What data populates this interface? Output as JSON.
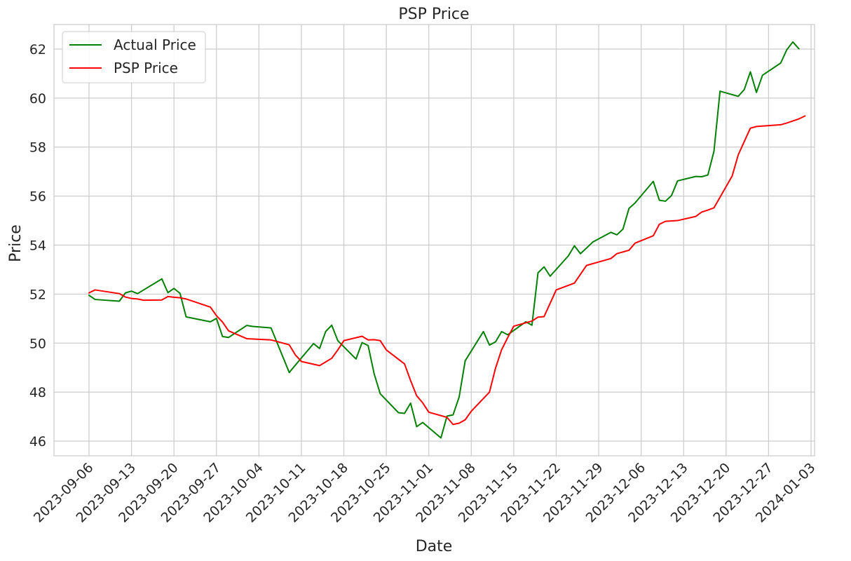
{
  "chart_data": {
    "type": "line",
    "title": "PSP Price",
    "xlabel": "Date",
    "ylabel": "Price",
    "xlim": [
      "2023-09-06",
      "2024-01-03"
    ],
    "ylim": [
      45.4,
      63.0
    ],
    "x_ticks": [
      "2023-09-06",
      "2023-09-13",
      "2023-09-20",
      "2023-09-27",
      "2023-10-04",
      "2023-10-11",
      "2023-10-18",
      "2023-10-25",
      "2023-11-01",
      "2023-11-08",
      "2023-11-15",
      "2023-11-22",
      "2023-11-29",
      "2023-12-06",
      "2023-12-13",
      "2023-12-20",
      "2023-12-27",
      "2024-01-03"
    ],
    "y_ticks": [
      46,
      48,
      50,
      52,
      54,
      56,
      58,
      60,
      62
    ],
    "grid": true,
    "legend_position": "top-left",
    "series": [
      {
        "name": "Actual Price",
        "color": "#008000",
        "points": [
          [
            "2023-09-06",
            51.95
          ],
          [
            "2023-09-07",
            51.78
          ],
          [
            "2023-09-11",
            51.71
          ],
          [
            "2023-09-12",
            52.05
          ],
          [
            "2023-09-13",
            52.12
          ],
          [
            "2023-09-14",
            52.02
          ],
          [
            "2023-09-18",
            52.62
          ],
          [
            "2023-09-19",
            52.06
          ],
          [
            "2023-09-20",
            52.23
          ],
          [
            "2023-09-21",
            52.03
          ],
          [
            "2023-09-22",
            51.07
          ],
          [
            "2023-09-26",
            50.87
          ],
          [
            "2023-09-27",
            51.01
          ],
          [
            "2023-09-28",
            50.27
          ],
          [
            "2023-09-29",
            50.23
          ],
          [
            "2023-10-02",
            50.72
          ],
          [
            "2023-10-03",
            50.68
          ],
          [
            "2023-10-06",
            50.62
          ],
          [
            "2023-10-09",
            48.8
          ],
          [
            "2023-10-10",
            49.1
          ],
          [
            "2023-10-13",
            49.98
          ],
          [
            "2023-10-14",
            49.78
          ],
          [
            "2023-10-15",
            50.47
          ],
          [
            "2023-10-16",
            50.73
          ],
          [
            "2023-10-17",
            50.1
          ],
          [
            "2023-10-20",
            49.35
          ],
          [
            "2023-10-21",
            50.02
          ],
          [
            "2023-10-22",
            49.9
          ],
          [
            "2023-10-23",
            48.74
          ],
          [
            "2023-10-24",
            47.93
          ],
          [
            "2023-10-27",
            47.16
          ],
          [
            "2023-10-28",
            47.13
          ],
          [
            "2023-10-29",
            47.55
          ],
          [
            "2023-10-30",
            46.59
          ],
          [
            "2023-10-31",
            46.76
          ],
          [
            "2023-11-03",
            46.13
          ],
          [
            "2023-11-04",
            47.02
          ],
          [
            "2023-11-05",
            47.07
          ],
          [
            "2023-11-06",
            47.8
          ],
          [
            "2023-11-07",
            49.28
          ],
          [
            "2023-11-10",
            50.47
          ],
          [
            "2023-11-11",
            49.92
          ],
          [
            "2023-11-12",
            50.05
          ],
          [
            "2023-11-13",
            50.47
          ],
          [
            "2023-11-14",
            50.34
          ],
          [
            "2023-11-17",
            50.87
          ],
          [
            "2023-11-18",
            50.73
          ],
          [
            "2023-11-19",
            52.87
          ],
          [
            "2023-11-20",
            53.11
          ],
          [
            "2023-11-21",
            52.73
          ],
          [
            "2023-11-24",
            53.56
          ],
          [
            "2023-11-25",
            53.97
          ],
          [
            "2023-11-26",
            53.65
          ],
          [
            "2023-11-27",
            53.88
          ],
          [
            "2023-11-28",
            54.12
          ],
          [
            "2023-12-01",
            54.52
          ],
          [
            "2023-12-02",
            54.42
          ],
          [
            "2023-12-03",
            54.65
          ],
          [
            "2023-12-04",
            55.5
          ],
          [
            "2023-12-05",
            55.72
          ],
          [
            "2023-12-08",
            56.6
          ],
          [
            "2023-12-09",
            55.83
          ],
          [
            "2023-12-10",
            55.79
          ],
          [
            "2023-12-11",
            56.02
          ],
          [
            "2023-12-12",
            56.62
          ],
          [
            "2023-12-15",
            56.8
          ],
          [
            "2023-12-16",
            56.79
          ],
          [
            "2023-12-17",
            56.86
          ],
          [
            "2023-12-18",
            57.83
          ],
          [
            "2023-12-19",
            60.28
          ],
          [
            "2023-12-22",
            60.07
          ],
          [
            "2023-12-23",
            60.35
          ],
          [
            "2023-12-24",
            61.07
          ],
          [
            "2023-12-25",
            60.23
          ],
          [
            "2023-12-26",
            60.93
          ],
          [
            "2023-12-29",
            61.43
          ],
          [
            "2023-12-30",
            61.97
          ],
          [
            "2023-12-31",
            62.29
          ],
          [
            "2024-01-01",
            62.01
          ]
        ]
      },
      {
        "name": "PSP Price",
        "color": "#ff0000",
        "points": [
          [
            "2023-09-06",
            52.05
          ],
          [
            "2023-09-07",
            52.17
          ],
          [
            "2023-09-11",
            52.02
          ],
          [
            "2023-09-12",
            51.88
          ],
          [
            "2023-09-13",
            51.82
          ],
          [
            "2023-09-14",
            51.8
          ],
          [
            "2023-09-15",
            51.75
          ],
          [
            "2023-09-18",
            51.76
          ],
          [
            "2023-09-19",
            51.9
          ],
          [
            "2023-09-20",
            51.87
          ],
          [
            "2023-09-21",
            51.85
          ],
          [
            "2023-09-22",
            51.8
          ],
          [
            "2023-09-26",
            51.47
          ],
          [
            "2023-09-27",
            51.12
          ],
          [
            "2023-09-28",
            50.86
          ],
          [
            "2023-09-29",
            50.5
          ],
          [
            "2023-10-02",
            50.18
          ],
          [
            "2023-10-06",
            50.13
          ],
          [
            "2023-10-09",
            49.93
          ],
          [
            "2023-10-10",
            49.52
          ],
          [
            "2023-10-11",
            49.25
          ],
          [
            "2023-10-14",
            49.08
          ],
          [
            "2023-10-16",
            49.38
          ],
          [
            "2023-10-17",
            49.72
          ],
          [
            "2023-10-18",
            50.1
          ],
          [
            "2023-10-21",
            50.28
          ],
          [
            "2023-10-22",
            50.13
          ],
          [
            "2023-10-23",
            50.14
          ],
          [
            "2023-10-24",
            50.1
          ],
          [
            "2023-10-25",
            49.72
          ],
          [
            "2023-10-28",
            49.15
          ],
          [
            "2023-10-29",
            48.47
          ],
          [
            "2023-10-30",
            47.85
          ],
          [
            "2023-10-31",
            47.56
          ],
          [
            "2023-11-01",
            47.18
          ],
          [
            "2023-11-04",
            46.97
          ],
          [
            "2023-11-05",
            46.68
          ],
          [
            "2023-11-06",
            46.73
          ],
          [
            "2023-11-07",
            46.87
          ],
          [
            "2023-11-08",
            47.22
          ],
          [
            "2023-11-11",
            48.0
          ],
          [
            "2023-11-12",
            48.98
          ],
          [
            "2023-11-13",
            49.73
          ],
          [
            "2023-11-14",
            50.22
          ],
          [
            "2023-11-15",
            50.69
          ],
          [
            "2023-11-18",
            50.9
          ],
          [
            "2023-11-19",
            51.06
          ],
          [
            "2023-11-20",
            51.08
          ],
          [
            "2023-11-22",
            52.17
          ],
          [
            "2023-11-25",
            52.45
          ],
          [
            "2023-11-27",
            53.17
          ],
          [
            "2023-12-01",
            53.45
          ],
          [
            "2023-12-02",
            53.65
          ],
          [
            "2023-12-04",
            53.79
          ],
          [
            "2023-12-05",
            54.08
          ],
          [
            "2023-12-08",
            54.38
          ],
          [
            "2023-12-09",
            54.85
          ],
          [
            "2023-12-10",
            54.97
          ],
          [
            "2023-12-12",
            55.0
          ],
          [
            "2023-12-15",
            55.17
          ],
          [
            "2023-12-16",
            55.35
          ],
          [
            "2023-12-17",
            55.43
          ],
          [
            "2023-12-18",
            55.52
          ],
          [
            "2023-12-21",
            56.82
          ],
          [
            "2023-12-22",
            57.68
          ],
          [
            "2023-12-23",
            58.23
          ],
          [
            "2023-12-24",
            58.77
          ],
          [
            "2023-12-25",
            58.84
          ],
          [
            "2023-12-29",
            58.91
          ],
          [
            "2023-12-30",
            58.98
          ],
          [
            "2024-01-01",
            59.15
          ],
          [
            "2024-01-02",
            59.27
          ]
        ]
      }
    ]
  }
}
